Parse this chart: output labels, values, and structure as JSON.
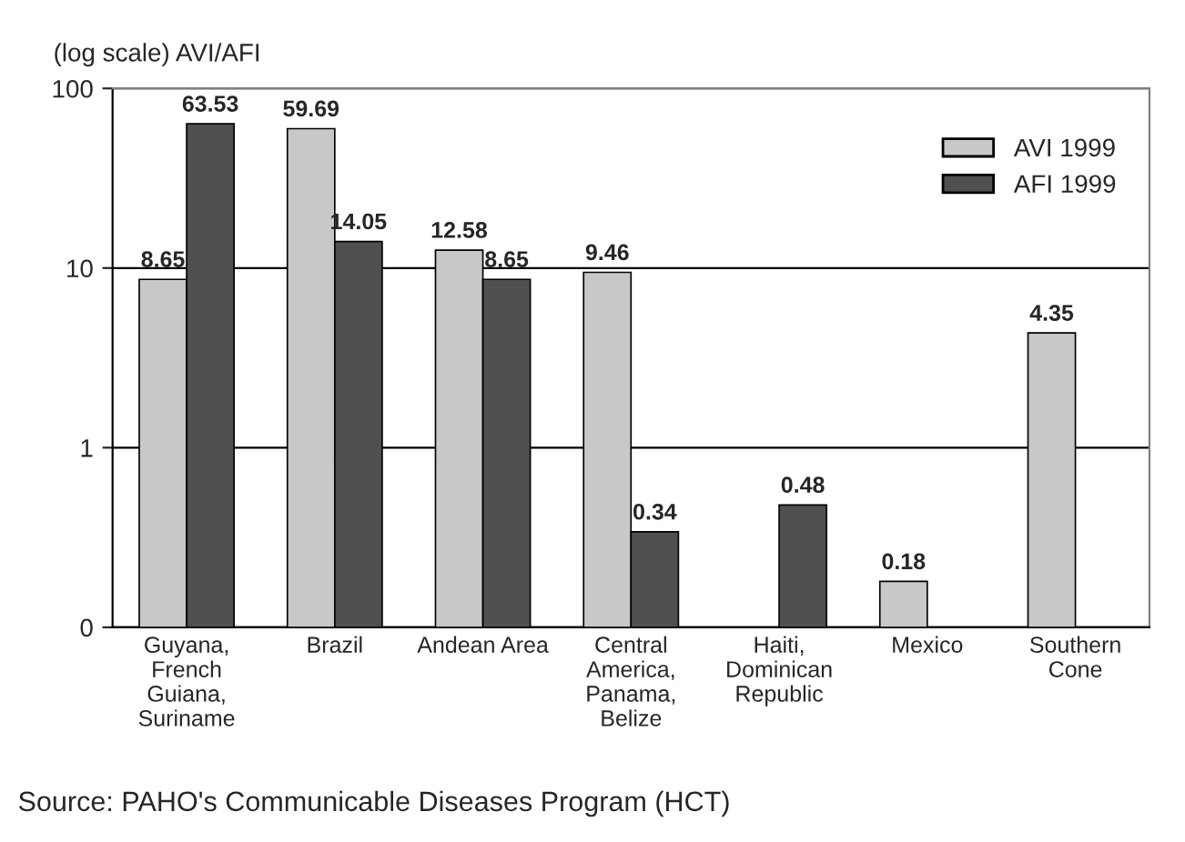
{
  "chart_data": {
    "type": "bar",
    "ylabel": "(log scale) AVI/AFI",
    "categories": [
      "Guyana,\nFrench\nGuiana,\nSuriname",
      "Brazil",
      "Andean Area",
      "Central\nAmerica,\nPanama,\nBelize",
      "Haiti,\nDominican\nRepublic",
      "Mexico",
      "Southern\nCone"
    ],
    "series": [
      {
        "name": "AVI 1999",
        "color": "#c8c8c8",
        "values": [
          8.65,
          59.69,
          12.58,
          9.46,
          null,
          0.18,
          4.35
        ]
      },
      {
        "name": "AFI 1999",
        "color": "#505050",
        "values": [
          63.53,
          14.05,
          8.65,
          0.34,
          0.48,
          null,
          null
        ]
      }
    ],
    "log": true,
    "ylim": [
      0.1,
      100
    ],
    "yticks": [
      {
        "value": 0.1,
        "label": "0"
      },
      1,
      10,
      100
    ],
    "grid": "y",
    "legend": "top right",
    "data_labels": true,
    "annotations": [
      "Source: PAHO's Communicable Diseases Program (HCT)"
    ]
  }
}
